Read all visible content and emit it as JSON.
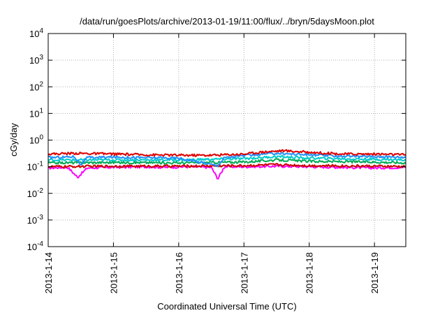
{
  "chart_data": {
    "type": "line",
    "title": "/data/run/goesPlots/archive/2013-01-19/11:00/flux/../bryn/5daysMoon.plot",
    "xlabel": "Coordinated Universal Time (UTC)",
    "ylabel": "cGy/day",
    "y_scale": "log",
    "ylim": [
      0.0001,
      10000
    ],
    "xlim_days": [
      0,
      5.48
    ],
    "x_ticks": [
      "2013-1-14",
      "2013-1-15",
      "2013-1-16",
      "2013-1-17",
      "2013-1-18",
      "2013-1-19"
    ],
    "y_ticks": [
      {
        "base": "10",
        "exp": "4"
      },
      {
        "base": "10",
        "exp": "3"
      },
      {
        "base": "10",
        "exp": "2"
      },
      {
        "base": "10",
        "exp": "1"
      },
      {
        "base": "10",
        "exp": "0"
      },
      {
        "base": "10",
        "exp": "-1"
      },
      {
        "base": "10",
        "exp": "-2"
      },
      {
        "base": "10",
        "exp": "-3"
      },
      {
        "base": "10",
        "exp": "-4"
      }
    ],
    "grid": true,
    "legend": "none",
    "series": [
      {
        "color": "#ff00ff",
        "points": [
          [
            0,
            0.09
          ],
          [
            0.3,
            0.095
          ],
          [
            0.45,
            0.04
          ],
          [
            0.6,
            0.09
          ],
          [
            1.0,
            0.095
          ],
          [
            1.5,
            0.1
          ],
          [
            1.8,
            0.095
          ],
          [
            2.1,
            0.1
          ],
          [
            2.5,
            0.095
          ],
          [
            2.6,
            0.035
          ],
          [
            2.7,
            0.1
          ],
          [
            3.0,
            0.1
          ],
          [
            3.5,
            0.105
          ],
          [
            4.0,
            0.1
          ],
          [
            4.5,
            0.095
          ],
          [
            5.0,
            0.09
          ],
          [
            5.48,
            0.095
          ]
        ]
      },
      {
        "color": "#cc0000",
        "points": [
          [
            0,
            0.1
          ],
          [
            1.0,
            0.105
          ],
          [
            2.0,
            0.105
          ],
          [
            3.0,
            0.11
          ],
          [
            3.5,
            0.12
          ],
          [
            4.0,
            0.11
          ],
          [
            5.0,
            0.105
          ],
          [
            5.48,
            0.1
          ]
        ]
      },
      {
        "color": "#00aa55",
        "points": [
          [
            0,
            0.14
          ],
          [
            1.0,
            0.145
          ],
          [
            2.0,
            0.14
          ],
          [
            3.0,
            0.15
          ],
          [
            3.5,
            0.18
          ],
          [
            4.0,
            0.16
          ],
          [
            5.0,
            0.15
          ],
          [
            5.48,
            0.14
          ]
        ]
      },
      {
        "color": "#00cccc",
        "points": [
          [
            0,
            0.18
          ],
          [
            1.0,
            0.18
          ],
          [
            2.0,
            0.18
          ],
          [
            3.0,
            0.2
          ],
          [
            3.5,
            0.24
          ],
          [
            4.0,
            0.21
          ],
          [
            5.0,
            0.19
          ],
          [
            5.48,
            0.18
          ]
        ]
      },
      {
        "color": "#1e90ff",
        "points": [
          [
            0,
            0.22
          ],
          [
            0.4,
            0.24
          ],
          [
            0.5,
            0.12
          ],
          [
            0.6,
            0.22
          ],
          [
            1.0,
            0.23
          ],
          [
            1.5,
            0.22
          ],
          [
            2.0,
            0.21
          ],
          [
            2.6,
            0.11
          ],
          [
            2.7,
            0.22
          ],
          [
            3.0,
            0.26
          ],
          [
            3.5,
            0.32
          ],
          [
            4.0,
            0.28
          ],
          [
            4.5,
            0.25
          ],
          [
            5.0,
            0.24
          ],
          [
            5.48,
            0.23
          ]
        ]
      },
      {
        "color": "#dd0000",
        "points": [
          [
            0,
            0.3
          ],
          [
            0.4,
            0.32
          ],
          [
            1.0,
            0.3
          ],
          [
            1.5,
            0.28
          ],
          [
            2.0,
            0.27
          ],
          [
            2.5,
            0.27
          ],
          [
            3.0,
            0.3
          ],
          [
            3.3,
            0.36
          ],
          [
            3.6,
            0.4
          ],
          [
            4.0,
            0.35
          ],
          [
            4.5,
            0.3
          ],
          [
            5.0,
            0.3
          ],
          [
            5.48,
            0.28
          ]
        ]
      }
    ]
  }
}
